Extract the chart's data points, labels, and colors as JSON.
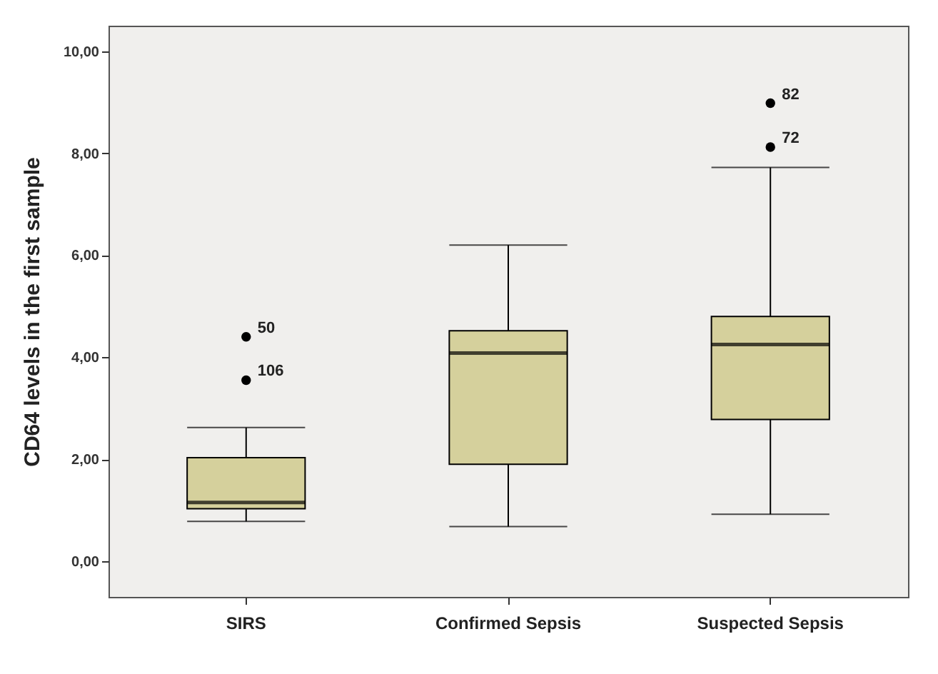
{
  "chart_data": {
    "type": "box",
    "ylabel": "CD64 levels in the first sample",
    "categories": [
      "SIRS",
      "Confirmed Sepsis",
      "Suspected Sepsis"
    ],
    "boxes": [
      {
        "low": 0.78,
        "q1": 1.03,
        "median": 1.15,
        "q3": 2.03,
        "high": 2.62,
        "outliers": [
          4.4,
          3.55
        ]
      },
      {
        "low": 0.68,
        "q1": 1.9,
        "median": 4.08,
        "q3": 4.52,
        "high": 6.2
      },
      {
        "low": 0.92,
        "q1": 2.78,
        "median": 4.25,
        "q3": 4.8,
        "high": 7.72,
        "outliers": [
          8.98,
          8.12
        ]
      }
    ],
    "color": "#d5d09c",
    "ylim": [
      -0.7,
      10.5
    ],
    "yticks": [
      {
        "value": 0,
        "label": "0,00"
      },
      {
        "value": 2,
        "label": "2,00"
      },
      {
        "value": 4,
        "label": "4,00"
      },
      {
        "value": 6,
        "label": "6,00"
      },
      {
        "value": 8,
        "label": "8,00"
      },
      {
        "value": 10,
        "label": "10,00"
      }
    ],
    "grid": false,
    "annotations": [
      "50",
      "106",
      "82",
      "72"
    ]
  }
}
